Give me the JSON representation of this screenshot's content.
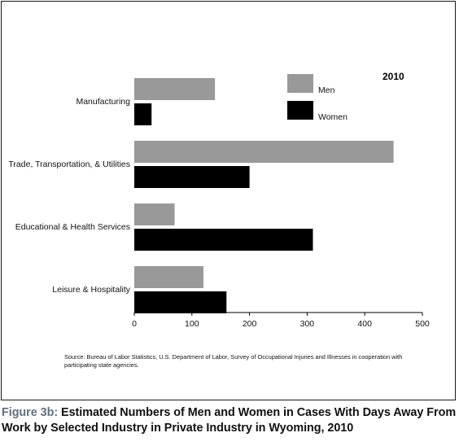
{
  "chart_data": {
    "type": "bar",
    "orientation": "horizontal",
    "year_label": "2010",
    "categories": [
      "Manufacturing",
      "Trade, Transportation, & Utilities",
      "Educational & Health Services",
      "Leisure & Hospitality"
    ],
    "series": [
      {
        "name": "Men",
        "color": "#999999",
        "values": [
          140,
          450,
          70,
          120
        ]
      },
      {
        "name": "Women",
        "color": "#000000",
        "values": [
          30,
          200,
          310,
          160
        ]
      }
    ],
    "xlim": [
      0,
      500
    ],
    "xticks": [
      0,
      100,
      200,
      300,
      400,
      500
    ],
    "grid": false,
    "legend_position": "top-right"
  },
  "source_text": "Source: Bureau of Labor Statistics, U.S. Department of Labor, Survey of Occupational Injuries and Illnesses in cooperation with participating state agencies.",
  "figure_caption": {
    "label": "Figure 3b:",
    "text": "Estimated Numbers of Men and Women in Cases With Days Away From Work by Selected Industry in Private Industry in Wyoming, 2010"
  }
}
